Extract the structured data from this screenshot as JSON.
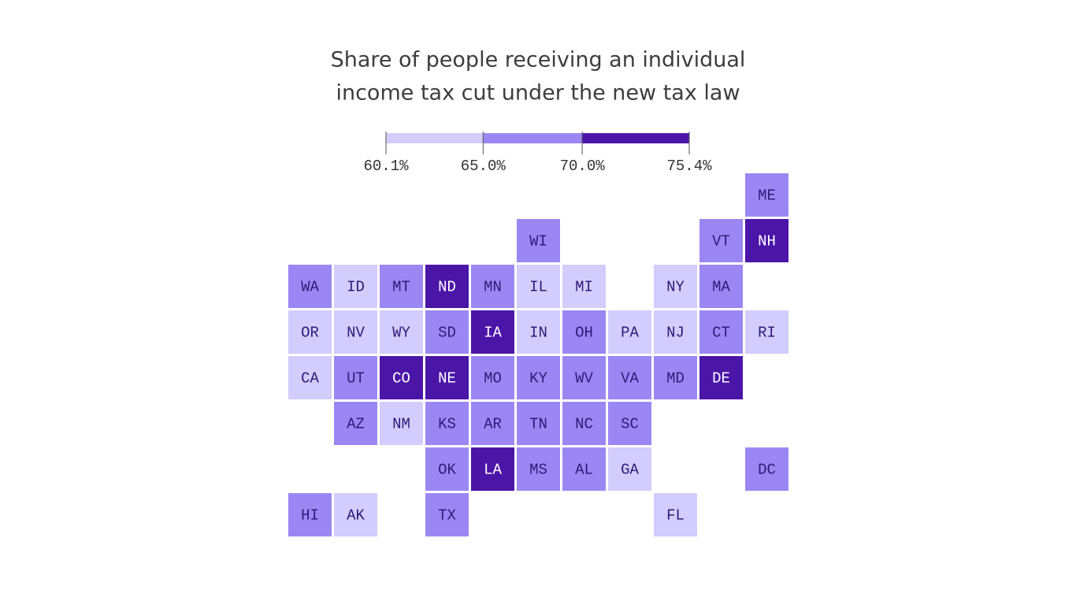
{
  "header": {
    "title_lines": [
      "Share of people receiving an individual",
      "income tax cut under the new tax law"
    ]
  },
  "legend": {
    "lim": [
      60.1,
      75.4
    ],
    "ticks": [
      {
        "value": 60.1,
        "label": "60.1%"
      },
      {
        "value": 65.0,
        "label": "65.0%"
      },
      {
        "value": 70.0,
        "label": "70.0%"
      },
      {
        "value": 75.4,
        "label": "75.4%"
      }
    ],
    "colors": [
      "#d2cdfc",
      "#9b87f3",
      "#4b15a8"
    ]
  },
  "tiles": {
    "rows": [
      [
        null,
        null,
        null,
        null,
        null,
        null,
        null,
        null,
        null,
        null,
        {
          "label": "ME",
          "color": "#9b87f3"
        }
      ],
      [
        null,
        null,
        null,
        null,
        null,
        {
          "label": "WI",
          "color": "#9b87f3"
        },
        null,
        null,
        null,
        {
          "label": "VT",
          "color": "#9b87f3"
        },
        {
          "label": "NH",
          "color": "#4b15a8"
        }
      ],
      [
        {
          "label": "WA",
          "color": "#9b87f3"
        },
        {
          "label": "ID",
          "color": "#d2cdfc"
        },
        {
          "label": "MT",
          "color": "#9b87f3"
        },
        {
          "label": "ND",
          "color": "#4b15a8"
        },
        {
          "label": "MN",
          "color": "#9b87f3"
        },
        {
          "label": "IL",
          "color": "#d2cdfc"
        },
        {
          "label": "MI",
          "color": "#d2cdfc"
        },
        null,
        {
          "label": "NY",
          "color": "#d2cdfc"
        },
        {
          "label": "MA",
          "color": "#9b87f3"
        }
      ],
      [
        {
          "label": "OR",
          "color": "#d2cdfc"
        },
        {
          "label": "NV",
          "color": "#d2cdfc"
        },
        {
          "label": "WY",
          "color": "#d2cdfc"
        },
        {
          "label": "SD",
          "color": "#9b87f3"
        },
        {
          "label": "IA",
          "color": "#4b15a8"
        },
        {
          "label": "IN",
          "color": "#d2cdfc"
        },
        {
          "label": "OH",
          "color": "#9b87f3"
        },
        {
          "label": "PA",
          "color": "#d2cdfc"
        },
        {
          "label": "NJ",
          "color": "#d2cdfc"
        },
        {
          "label": "CT",
          "color": "#9b87f3"
        },
        {
          "label": "RI",
          "color": "#d2cdfc"
        }
      ],
      [
        {
          "label": "CA",
          "color": "#d2cdfc"
        },
        {
          "label": "UT",
          "color": "#9b87f3"
        },
        {
          "label": "CO",
          "color": "#4b15a8"
        },
        {
          "label": "NE",
          "color": "#4b15a8"
        },
        {
          "label": "MO",
          "color": "#9b87f3"
        },
        {
          "label": "KY",
          "color": "#9b87f3"
        },
        {
          "label": "WV",
          "color": "#9b87f3"
        },
        {
          "label": "VA",
          "color": "#9b87f3"
        },
        {
          "label": "MD",
          "color": "#9b87f3"
        },
        {
          "label": "DE",
          "color": "#4b15a8"
        }
      ],
      [
        null,
        {
          "label": "AZ",
          "color": "#9b87f3"
        },
        {
          "label": "NM",
          "color": "#d2cdfc"
        },
        {
          "label": "KS",
          "color": "#9b87f3"
        },
        {
          "label": "AR",
          "color": "#9b87f3"
        },
        {
          "label": "TN",
          "color": "#9b87f3"
        },
        {
          "label": "NC",
          "color": "#9b87f3"
        },
        {
          "label": "SC",
          "color": "#9b87f3"
        }
      ],
      [
        null,
        null,
        null,
        {
          "label": "OK",
          "color": "#9b87f3"
        },
        {
          "label": "LA",
          "color": "#4b15a8"
        },
        {
          "label": "MS",
          "color": "#9b87f3"
        },
        {
          "label": "AL",
          "color": "#9b87f3"
        },
        {
          "label": "GA",
          "color": "#d2cdfc"
        },
        null,
        null,
        {
          "label": "DC",
          "color": "#9b87f3"
        }
      ],
      [
        {
          "label": "HI",
          "color": "#9b87f3"
        },
        {
          "label": "AK",
          "color": "#d2cdfc"
        },
        null,
        {
          "label": "TX",
          "color": "#9b87f3"
        },
        null,
        null,
        null,
        null,
        {
          "label": "FL",
          "color": "#d2cdfc"
        }
      ]
    ]
  }
}
